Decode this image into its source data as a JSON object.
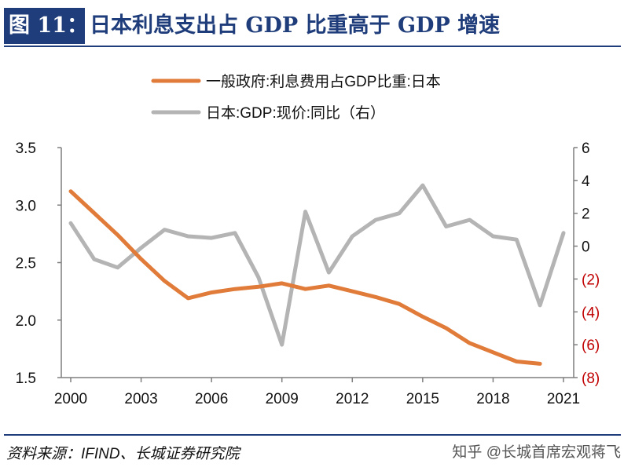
{
  "header": {
    "figure_label": "图 11：",
    "title": "日本利息支出占 GDP 比重高于 GDP 增速"
  },
  "footer": {
    "source": "资料来源：IFIND、长城证券研究院",
    "watermark": "知乎 @长城首席宏观蒋飞"
  },
  "chart_data": {
    "type": "line",
    "x": [
      2000,
      2001,
      2002,
      2003,
      2004,
      2005,
      2006,
      2007,
      2008,
      2009,
      2010,
      2011,
      2012,
      2013,
      2014,
      2015,
      2016,
      2017,
      2018,
      2019,
      2020,
      2021
    ],
    "x_ticks": [
      2000,
      2003,
      2006,
      2009,
      2012,
      2015,
      2018,
      2021
    ],
    "x_tick_labels": [
      "2000",
      "2003",
      "2006",
      "2009",
      "2012",
      "2015",
      "2018",
      "2021"
    ],
    "series": [
      {
        "name": "一般政府:利息费用占GDP比重:日本",
        "axis": "left",
        "color": "#e07b39",
        "values": [
          3.12,
          2.93,
          2.74,
          2.53,
          2.34,
          2.19,
          2.24,
          2.27,
          2.29,
          2.32,
          2.27,
          2.3,
          2.25,
          2.2,
          2.14,
          2.03,
          1.93,
          1.8,
          1.72,
          1.64,
          1.62,
          null
        ]
      },
      {
        "name": "日本:GDP:现价:同比（右）",
        "axis": "right",
        "color": "#b4b4b4",
        "values": [
          1.4,
          -0.8,
          -1.3,
          -0.1,
          1.0,
          0.6,
          0.5,
          0.8,
          -1.9,
          -6.0,
          2.1,
          -1.6,
          0.6,
          1.6,
          2.0,
          3.7,
          1.2,
          1.6,
          0.6,
          0.4,
          -3.6,
          0.8
        ]
      }
    ],
    "left_axis": {
      "ylim": [
        1.5,
        3.5
      ],
      "ticks": [
        1.5,
        2.0,
        2.5,
        3.0,
        3.5
      ],
      "tick_labels": [
        "1.5",
        "2.0",
        "2.5",
        "3.0",
        "3.5"
      ]
    },
    "right_axis": {
      "ylim": [
        -8,
        6
      ],
      "ticks": [
        6,
        4,
        2,
        0,
        -2,
        -4,
        -6,
        -8
      ],
      "tick_labels": [
        "6",
        "4",
        "2",
        "0",
        "(2)",
        "(4)",
        "(6)",
        "(8)"
      ],
      "negative_color": "#c00000"
    },
    "legend_position": "top-center",
    "grid": false
  }
}
